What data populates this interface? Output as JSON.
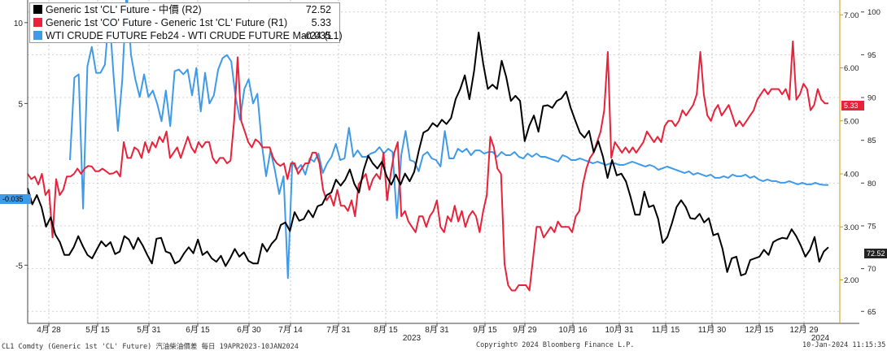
{
  "legend": [
    {
      "label": "Generic 1st 'CL' Future - 中價 (R2)",
      "value": "72.52",
      "color": "#000000"
    },
    {
      "label": "Generic 1st 'CO' Future - Generic 1st 'CL' Future (R1)",
      "value": "5.33",
      "color": "#e8223a"
    },
    {
      "label": "WTI CRUDE FUTURE Feb24 - WTI CRUDE FUTURE Mar24 (L1)",
      "value": "-0.035",
      "color": "#3f9ae8"
    }
  ],
  "last_value_tags": {
    "left": "-0.035",
    "r1": "5.33",
    "r2": "72.52"
  },
  "footer": {
    "left": "CL1 Comdty (Generic 1st 'CL' Future) 汽油柴油價差  每日 19APR2023-10JAN2024",
    "center": "Copyright© 2024 Bloomberg Finance L.P.",
    "right": "10-Jan-2024 11:15:35"
  },
  "chart_data": {
    "type": "line",
    "x_tick_labels": [
      "4月 28",
      "5月 15",
      "5月 31",
      "6月 15",
      "6月 30",
      "7月 14",
      "7月 31",
      "8月 15",
      "8月 31",
      "9月 15",
      "9月 29",
      "10月 16",
      "10月 31",
      "11月 15",
      "11月 30",
      "12月 15",
      "12月 29"
    ],
    "x_year_labels": [
      "2023",
      "2024"
    ],
    "axes": {
      "left": {
        "ticks": [
          "10",
          "5",
          "-5"
        ],
        "tick_values": [
          10,
          5,
          -5
        ],
        "range": [
          -8.6,
          11.4
        ]
      },
      "r1": {
        "ticks": [
          "2.00",
          "3.00",
          "4.00",
          "5.00",
          "6.00",
          "7.00"
        ],
        "tick_values": [
          2,
          3,
          4,
          5,
          6,
          7
        ],
        "range": [
          1.18,
          7.28
        ]
      },
      "r2": {
        "ticks": [
          "65",
          "70",
          "75",
          "80",
          "85",
          "90",
          "95",
          "100"
        ],
        "tick_values": [
          65,
          70,
          75,
          80,
          85,
          90,
          95,
          100
        ],
        "range": [
          63.6,
          101.4
        ]
      }
    },
    "series": [
      {
        "name": "Generic 1st 'CL' Future - 中價 (R2)",
        "axis": "r2",
        "color": "#000000",
        "values": [
          79.4,
          77.5,
          78.6,
          77.2,
          74.9,
          76.0,
          74.0,
          73.1,
          71.6,
          71.6,
          72.5,
          73.8,
          72.6,
          71.6,
          71.2,
          72.2,
          73.2,
          72.6,
          73.1,
          71.7,
          72.0,
          73.8,
          73.4,
          72.3,
          73.6,
          72.7,
          71.6,
          70.6,
          73.5,
          73.6,
          72.0,
          71.8,
          70.6,
          70.9,
          71.8,
          72.5,
          71.8,
          73.4,
          71.6,
          72.0,
          71.2,
          70.8,
          71.5,
          70.3,
          71.2,
          72.3,
          71.4,
          71.9,
          70.9,
          70.6,
          70.6,
          72.9,
          72.0,
          72.9,
          73.5,
          75.1,
          75.4,
          74.4,
          76.6,
          75.6,
          75.8,
          76.8,
          76.0,
          77.3,
          77.5,
          78.6,
          78.9,
          80.4,
          79.7,
          80.4,
          81.6,
          79.9,
          78.9,
          81.5,
          83.2,
          82.3,
          81.7,
          82.5,
          80.8,
          79.8,
          81.0,
          79.8,
          81.1,
          80.2,
          81.3,
          83.8,
          85.9,
          86.2,
          87.0,
          86.6,
          87.4,
          86.9,
          87.6,
          89.8,
          91.0,
          92.6,
          89.8,
          93.1,
          97.6,
          93.9,
          91.0,
          91.5,
          91.0,
          94.3,
          92.4,
          89.6,
          90.2,
          89.6,
          84.9,
          86.7,
          87.9,
          86.0,
          89.0,
          89.1,
          88.8,
          89.6,
          89.9,
          90.7,
          88.8,
          87.3,
          85.9,
          85.3,
          86.1,
          83.6,
          84.9,
          83.1,
          80.6,
          82.7,
          80.9,
          81.1,
          80.2,
          78.4,
          76.3,
          76.3,
          79.0,
          77.2,
          77.4,
          75.8,
          73.0,
          73.7,
          75.3,
          77.2,
          78.0,
          77.2,
          75.9,
          75.8,
          76.4,
          75.4,
          75.9,
          73.9,
          74.1,
          72.3,
          69.6,
          71.2,
          71.4,
          69.2,
          69.4,
          71.0,
          71.2,
          71.4,
          72.2,
          71.6,
          73.1,
          73.4,
          73.6,
          73.5,
          74.6,
          73.8,
          72.7,
          71.4,
          72.2,
          73.7,
          70.8,
          72.0,
          72.5
        ]
      },
      {
        "name": "Generic 1st 'CO' Future - Generic 1st 'CL' Future (R1)",
        "axis": "r1",
        "color": "#e8223a",
        "values": [
          4.0,
          3.9,
          3.95,
          3.8,
          4.0,
          3.6,
          3.7,
          2.8,
          3.9,
          3.6,
          3.7,
          3.95,
          3.95,
          4.0,
          4.1,
          4.0,
          4.1,
          4.15,
          4.14,
          4.05,
          4.05,
          4.1,
          4.05,
          4.0,
          4.01,
          4.05,
          3.95,
          4.6,
          4.3,
          4.3,
          4.5,
          4.45,
          4.3,
          4.6,
          4.4,
          4.6,
          4.5,
          4.7,
          4.6,
          4.8,
          4.3,
          4.4,
          4.5,
          4.3,
          4.5,
          4.7,
          4.5,
          4.4,
          4.6,
          4.5,
          4.6,
          4.6,
          4.3,
          4.2,
          4.3,
          4.3,
          4.2,
          4.25,
          5.0,
          6.2,
          5.0,
          4.8,
          4.6,
          4.5,
          4.65,
          4.6,
          4.5,
          4.5,
          4.5,
          4.3,
          4.2,
          4.15,
          4.2,
          3.9,
          4.2,
          4.2,
          4.0,
          4.1,
          4.2,
          4.2,
          4.4,
          4.4,
          4.2,
          3.7,
          3.5,
          3.6,
          3.4,
          3.7,
          3.4,
          3.4,
          3.3,
          3.5,
          3.2,
          3.8,
          3.9,
          4.0,
          3.7,
          3.9,
          4.0,
          3.9,
          4.4,
          3.5,
          4.0,
          4.4,
          4.6,
          3.2,
          3.3,
          3.1,
          3.0,
          2.9,
          3.2,
          3.2,
          3.0,
          3.2,
          3.3,
          3.5,
          3.0,
          2.9,
          3.2,
          3.1,
          3.4,
          3.1,
          3.3,
          3.0,
          3.2,
          3.3,
          3.2,
          2.9,
          3.3,
          3.6,
          4.7,
          4.5,
          4.1,
          4.0,
          2.3,
          1.9,
          1.8,
          1.8,
          1.9,
          1.9,
          1.9,
          1.8,
          2.4,
          3.0,
          3.0,
          2.8,
          2.9,
          3.0,
          2.9,
          3.1,
          3.0,
          3.0,
          3.0,
          2.9,
          3.2,
          3.3,
          3.8,
          4.1,
          4.3,
          4.4,
          4.6,
          4.8,
          5.2,
          6.3,
          4.3,
          4.6,
          4.5,
          4.4,
          4.5,
          4.4,
          4.5,
          4.4,
          4.5,
          4.6,
          4.8,
          4.7,
          4.6,
          4.7,
          4.6,
          4.9,
          5.0,
          5.0,
          4.9,
          5.0,
          5.2,
          5.1,
          5.2,
          5.3,
          5.5,
          6.3,
          5.5,
          5.1,
          5.0,
          5.2,
          5.3,
          5.1,
          5.2,
          5.3,
          5.1,
          4.9,
          5.0,
          4.9,
          5.0,
          5.1,
          5.2,
          5.4,
          5.5,
          5.6,
          5.5,
          5.6,
          5.6,
          5.6,
          5.5,
          5.6,
          5.4,
          6.5,
          5.4,
          5.5,
          5.7,
          5.6,
          5.2,
          5.3,
          5.6,
          5.4,
          5.33,
          5.33
        ]
      },
      {
        "name": "WTI CRUDE FUTURE Feb24 - WTI CRUDE FUTURE Mar24 (L1)",
        "axis": "left",
        "color": "#3f9ae8",
        "values": [
          1.5,
          6.6,
          6.8,
          -1.5,
          7.3,
          8.5,
          6.9,
          6.9,
          7.4,
          10.6,
          6.7,
          3.3,
          6.5,
          12.0,
          8.0,
          6.5,
          5.4,
          6.8,
          5.4,
          5.8,
          5.0,
          3.9,
          5.8,
          3.6,
          7.0,
          7.1,
          6.8,
          7.1,
          5.5,
          7.2,
          4.5,
          6.9,
          5.0,
          5.5,
          7.1,
          7.8,
          8.0,
          7.6,
          5.4,
          4.0,
          5.9,
          6.5,
          5.0,
          5.6,
          2.5,
          0.5,
          2.1,
          0.9,
          -0.6,
          0.5,
          -5.8,
          1.4,
          0.9,
          1.2,
          0.6,
          1.6,
          1.4,
          1.9,
          0.7,
          1.3,
          1.7,
          2.5,
          1.5,
          1.6,
          3.5,
          1.7,
          2.1,
          1.7,
          1.7,
          1.9,
          2.0,
          2.3,
          1.9,
          2.2,
          2.0,
          -2.1,
          1.8,
          3.3,
          1.5,
          1.4,
          0.8,
          1.8,
          2.0,
          1.6,
          1.5,
          1.1,
          3.3,
          1.6,
          1.6,
          2.2,
          2.0,
          2.2,
          1.8,
          2.1,
          2.1,
          1.9,
          2.0,
          2.0,
          1.7,
          2.0,
          1.8,
          1.8,
          2.0,
          1.7,
          1.6,
          1.9,
          1.7,
          1.9,
          1.7,
          1.7,
          1.6,
          1.5,
          1.4,
          1.8,
          1.7,
          1.5,
          1.5,
          1.6,
          1.5,
          1.4,
          1.3,
          1.4,
          1.3,
          1.2,
          1.3,
          1.3,
          1.2,
          1.2,
          1.3,
          1.4,
          1.3,
          1.2,
          1.1,
          1.2,
          1.1,
          0.9,
          1.0,
          1.1,
          1.0,
          0.9,
          0.8,
          0.7,
          0.8,
          0.6,
          0.7,
          0.6,
          0.5,
          0.6,
          0.4,
          0.4,
          0.5,
          0.4,
          0.6,
          0.5,
          0.5,
          0.6,
          0.4,
          0.5,
          0.3,
          0.2,
          0.3,
          0.2,
          0.2,
          0.1,
          0.1,
          0.2,
          0.1,
          0.0,
          0.1,
          0.0,
          0.0,
          0.1,
          0.0,
          -0.035,
          -0.035
        ]
      }
    ]
  }
}
